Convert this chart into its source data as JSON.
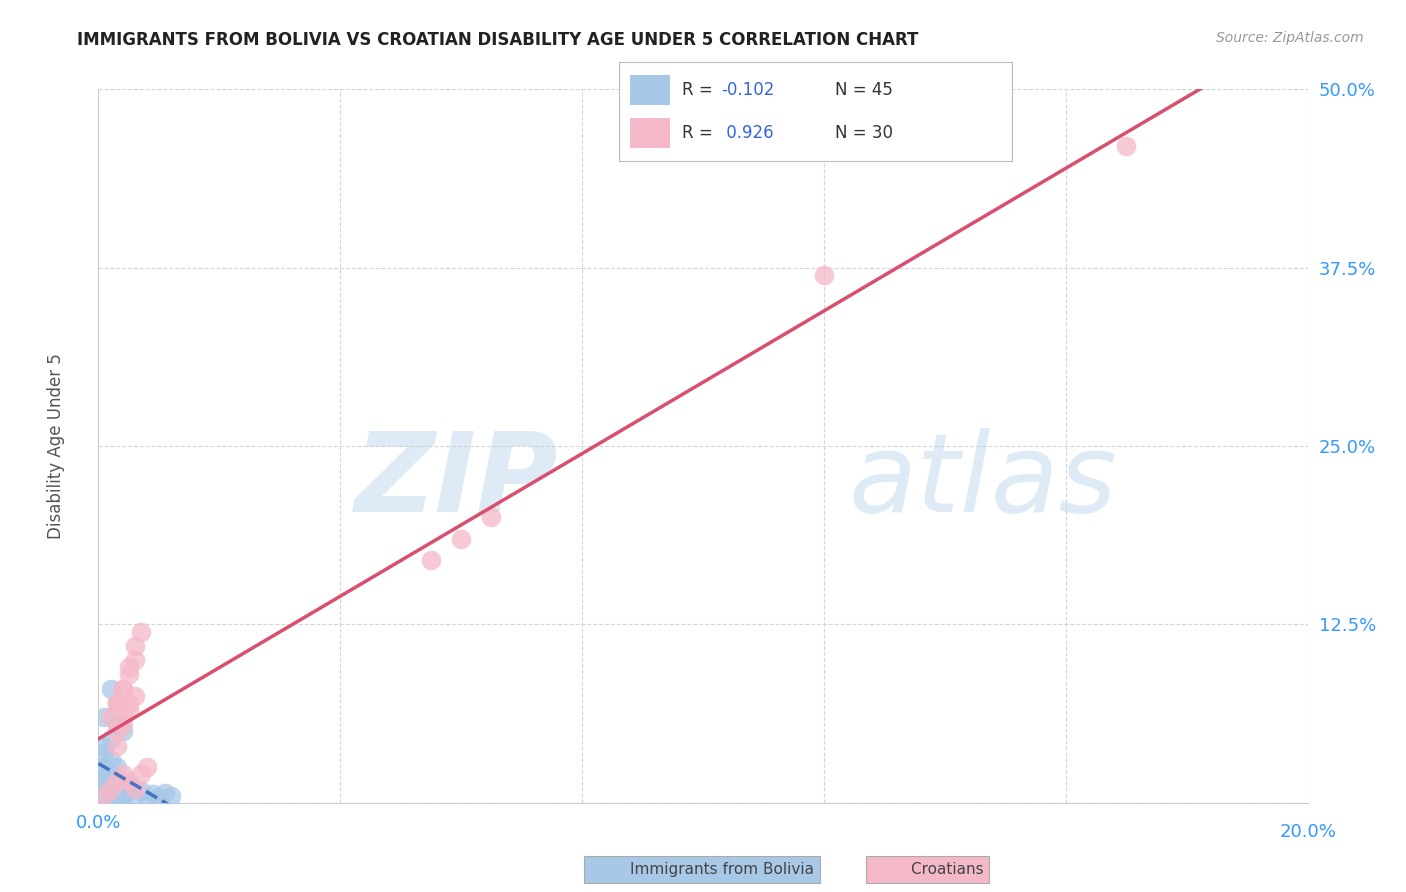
{
  "title": "IMMIGRANTS FROM BOLIVIA VS CROATIAN DISABILITY AGE UNDER 5 CORRELATION CHART",
  "source": "Source: ZipAtlas.com",
  "ylabel": "Disability Age Under 5",
  "legend1": "Immigrants from Bolivia",
  "legend2": "Croatians",
  "R1": -0.102,
  "N1": 45,
  "R2": 0.926,
  "N2": 30,
  "xlim": [
    0.0,
    0.2
  ],
  "ylim": [
    0.0,
    0.5
  ],
  "xticks": [
    0.0,
    0.04,
    0.08,
    0.12,
    0.16,
    0.2
  ],
  "yticks": [
    0.0,
    0.125,
    0.25,
    0.375,
    0.5
  ],
  "color_bolivia": "#a8c8e8",
  "color_croatia": "#f5b8c8",
  "color_bolivia_line": "#4472c4",
  "color_croatia_line": "#d94f6e",
  "background_color": "#ffffff",
  "grid_color": "#cccccc",
  "bolivia_x": [
    0.001,
    0.002,
    0.001,
    0.003,
    0.002,
    0.004,
    0.003,
    0.005,
    0.004,
    0.003,
    0.002,
    0.001,
    0.003,
    0.004,
    0.002,
    0.001,
    0.002,
    0.003,
    0.001,
    0.002,
    0.003,
    0.004,
    0.002,
    0.003,
    0.001,
    0.002,
    0.003,
    0.004,
    0.002,
    0.001,
    0.003,
    0.002,
    0.001,
    0.003,
    0.002,
    0.004,
    0.003,
    0.005,
    0.006,
    0.007,
    0.008,
    0.009,
    0.01,
    0.011,
    0.012
  ],
  "bolivia_y": [
    0.005,
    0.01,
    0.015,
    0.005,
    0.02,
    0.01,
    0.008,
    0.012,
    0.006,
    0.015,
    0.008,
    0.012,
    0.01,
    0.005,
    0.018,
    0.022,
    0.007,
    0.003,
    0.025,
    0.01,
    0.015,
    0.008,
    0.03,
    0.005,
    0.04,
    0.02,
    0.01,
    0.005,
    0.015,
    0.035,
    0.055,
    0.045,
    0.06,
    0.07,
    0.08,
    0.05,
    0.025,
    0.01,
    0.005,
    0.008,
    0.003,
    0.006,
    0.004,
    0.007,
    0.005
  ],
  "croatia_x": [
    0.001,
    0.002,
    0.003,
    0.004,
    0.005,
    0.006,
    0.007,
    0.008,
    0.003,
    0.004,
    0.005,
    0.006,
    0.002,
    0.003,
    0.004,
    0.005,
    0.006,
    0.007,
    0.003,
    0.004,
    0.005,
    0.003,
    0.004,
    0.005,
    0.006,
    0.055,
    0.06,
    0.065,
    0.12,
    0.17
  ],
  "croatia_y": [
    0.005,
    0.01,
    0.015,
    0.02,
    0.015,
    0.01,
    0.02,
    0.025,
    0.07,
    0.08,
    0.09,
    0.1,
    0.06,
    0.07,
    0.08,
    0.095,
    0.11,
    0.12,
    0.05,
    0.06,
    0.07,
    0.04,
    0.055,
    0.065,
    0.075,
    0.17,
    0.185,
    0.2,
    0.37,
    0.46
  ],
  "croatia_line_x0": 0.0,
  "croatia_line_y0": -0.005,
  "croatia_line_x1": 0.2,
  "croatia_line_y1": 0.505,
  "bolivia_line_x0": 0.0,
  "bolivia_line_y0": 0.01,
  "bolivia_line_x1": 0.2,
  "bolivia_line_y1": 0.003
}
